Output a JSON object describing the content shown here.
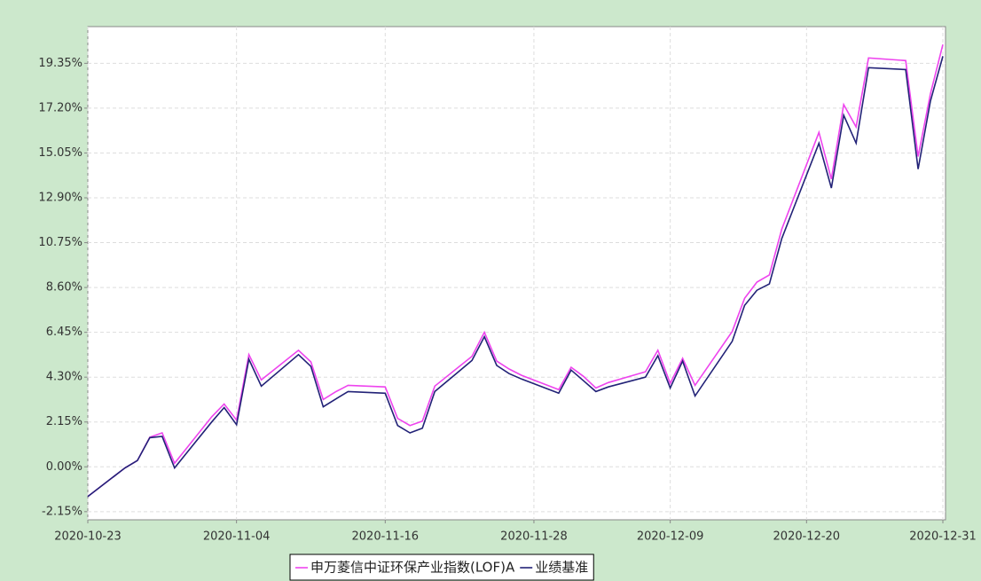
{
  "chart_data": {
    "type": "line",
    "x": [
      "2020-10-23",
      "2020-10-26",
      "2020-10-27",
      "2020-10-28",
      "2020-10-29",
      "2020-10-30",
      "2020-11-02",
      "2020-11-03",
      "2020-11-04",
      "2020-11-05",
      "2020-11-06",
      "2020-11-09",
      "2020-11-10",
      "2020-11-11",
      "2020-11-12",
      "2020-11-13",
      "2020-11-16",
      "2020-11-17",
      "2020-11-18",
      "2020-11-19",
      "2020-11-20",
      "2020-11-23",
      "2020-11-24",
      "2020-11-25",
      "2020-11-26",
      "2020-11-27",
      "2020-11-30",
      "2020-12-01",
      "2020-12-02",
      "2020-12-03",
      "2020-12-04",
      "2020-12-07",
      "2020-12-08",
      "2020-12-09",
      "2020-12-10",
      "2020-12-11",
      "2020-12-14",
      "2020-12-15",
      "2020-12-16",
      "2020-12-17",
      "2020-12-18",
      "2020-12-21",
      "2020-12-22",
      "2020-12-23",
      "2020-12-24",
      "2020-12-25",
      "2020-12-28",
      "2020-12-29",
      "2020-12-30",
      "2020-12-31"
    ],
    "series": [
      {
        "name": "申万菱信中证环保产业指数(LOF)A",
        "color": "#ee44ee",
        "values": [
          -1.42,
          -0.05,
          0.3,
          1.42,
          1.63,
          0.17,
          2.4,
          3.01,
          2.24,
          5.38,
          4.17,
          5.59,
          5.03,
          3.23,
          3.6,
          3.91,
          3.83,
          2.32,
          1.98,
          2.19,
          3.87,
          5.3,
          6.45,
          5.07,
          4.69,
          4.39,
          3.7,
          4.77,
          4.34,
          3.78,
          4.04,
          4.56,
          5.59,
          4.0,
          5.2,
          3.91,
          6.49,
          8.08,
          8.86,
          9.2,
          11.4,
          16.04,
          13.8,
          17.37,
          16.3,
          19.61,
          19.48,
          14.88,
          17.89,
          20.25
        ]
      },
      {
        "name": "业绩基准",
        "color": "#222277",
        "values": [
          -1.42,
          -0.05,
          0.3,
          1.4,
          1.46,
          -0.05,
          2.15,
          2.84,
          2.02,
          5.16,
          3.87,
          5.38,
          4.82,
          2.88,
          3.25,
          3.61,
          3.53,
          1.98,
          1.63,
          1.85,
          3.61,
          5.1,
          6.24,
          4.86,
          4.47,
          4.21,
          3.53,
          4.64,
          4.13,
          3.61,
          3.83,
          4.3,
          5.33,
          3.78,
          5.07,
          3.4,
          6.02,
          7.74,
          8.47,
          8.77,
          10.95,
          15.52,
          13.37,
          16.86,
          15.52,
          19.14,
          19.05,
          14.28,
          17.54,
          19.69
        ]
      }
    ],
    "xlim": [
      "2020-10-23",
      "2020-12-31"
    ],
    "xticks": [
      "2020-10-23",
      "2020-11-04",
      "2020-11-16",
      "2020-11-28",
      "2020-12-09",
      "2020-12-20",
      "2020-12-31"
    ],
    "ylim": [
      -2.54,
      21.11
    ],
    "yticks": [
      {
        "value": -2.15,
        "label": "-2.15%"
      },
      {
        "value": 0,
        "label": "0.00%"
      },
      {
        "value": 2.15,
        "label": "2.15%"
      },
      {
        "value": 4.3,
        "label": "4.30%"
      },
      {
        "value": 6.45,
        "label": "6.45%"
      },
      {
        "value": 8.6,
        "label": "8.60%"
      },
      {
        "value": 10.75,
        "label": "10.75%"
      },
      {
        "value": 12.9,
        "label": "12.90%"
      },
      {
        "value": 15.05,
        "label": "15.05%"
      },
      {
        "value": 17.2,
        "label": "17.20%"
      },
      {
        "value": 19.35,
        "label": "19.35%"
      }
    ],
    "grid": true,
    "legend": "bottom"
  }
}
